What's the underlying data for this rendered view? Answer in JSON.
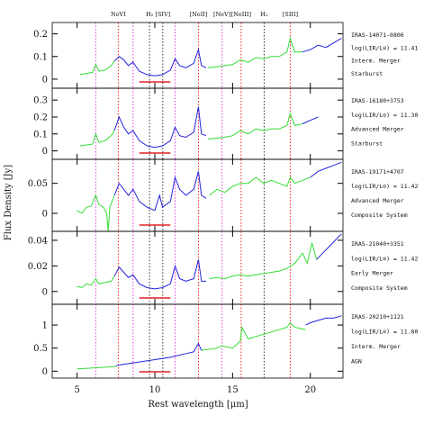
{
  "figure": {
    "xlabel": "Rest wavelength [μm]",
    "ylabel": "Flux Density [Jy]",
    "xlim": [
      3.4,
      22.1
    ],
    "xticks": [
      5,
      10,
      15,
      20
    ],
    "silicate_range": [
      9,
      11
    ],
    "lines": [
      {
        "x": 6.2,
        "color": "#e040e0"
      },
      {
        "x": 7.65,
        "color": "#ff2020",
        "label": "NeVI"
      },
      {
        "x": 8.6,
        "color": "#e040e0"
      },
      {
        "x": 9.66,
        "color": "#333333",
        "label": "H₂"
      },
      {
        "x": 10.51,
        "color": "#333333",
        "label": "[SIV]"
      },
      {
        "x": 11.3,
        "color": "#e040e0"
      },
      {
        "x": 12.81,
        "color": "#ff2020",
        "label": "[NeII]"
      },
      {
        "x": 14.32,
        "color": "#e040e0",
        "label": "[NeV]"
      },
      {
        "x": 15.55,
        "color": "#ff2020",
        "label": "[NeIII]"
      },
      {
        "x": 17.03,
        "color": "#333333",
        "label": "H₂"
      },
      {
        "x": 18.71,
        "color": "#ff2020",
        "label": "[SIII]"
      }
    ]
  },
  "chart_data": [
    {
      "type": "line",
      "ylim": [
        -0.04,
        0.25
      ],
      "yticks": [
        0,
        0.1,
        0.2
      ],
      "annotations": [
        "IRAS-14071-0806",
        "log(LIR/L⊙) = 11.41",
        "Interm. Merger",
        "Starburst"
      ],
      "series": [
        {
          "color": "#33dd33",
          "x": [
            5.2,
            5.6,
            6.0,
            6.2,
            6.4,
            6.8,
            7.2,
            7.4
          ],
          "values": [
            0.02,
            0.025,
            0.03,
            0.065,
            0.035,
            0.04,
            0.06,
            0.08
          ]
        },
        {
          "color": "#2222dd",
          "x": [
            7.4,
            7.7,
            8.0,
            8.3,
            8.6,
            9.0,
            9.5,
            10.0,
            10.5,
            11.0,
            11.3,
            11.6,
            12.0,
            12.5,
            12.8,
            13.0,
            13.3
          ],
          "values": [
            0.08,
            0.1,
            0.085,
            0.06,
            0.075,
            0.035,
            0.02,
            0.015,
            0.02,
            0.04,
            0.09,
            0.06,
            0.05,
            0.07,
            0.13,
            0.06,
            0.05
          ]
        },
        {
          "color": "#33dd33",
          "x": [
            13.4,
            14,
            14.5,
            15,
            15.5,
            16,
            16.5,
            17,
            17.5,
            18,
            18.5,
            18.7,
            19,
            19.5
          ],
          "values": [
            0.05,
            0.055,
            0.06,
            0.065,
            0.085,
            0.075,
            0.095,
            0.09,
            0.1,
            0.1,
            0.12,
            0.18,
            0.12,
            0.12
          ]
        },
        {
          "color": "#2222dd",
          "x": [
            19.5,
            20,
            20.5,
            21,
            21.5,
            22
          ],
          "values": [
            0.12,
            0.13,
            0.15,
            0.14,
            0.16,
            0.18
          ]
        }
      ]
    },
    {
      "type": "line",
      "ylim": [
        -0.05,
        0.37
      ],
      "yticks": [
        0,
        0.1,
        0.2,
        0.3
      ],
      "annotations": [
        "IRAS-16180+3753",
        "log(LIR/L⊙) = 11.30",
        "Advanced Merger",
        "Starburst"
      ],
      "series": [
        {
          "color": "#33dd33",
          "x": [
            5.2,
            5.6,
            6.0,
            6.2,
            6.4,
            6.8,
            7.2,
            7.4
          ],
          "values": [
            0.03,
            0.035,
            0.04,
            0.1,
            0.05,
            0.06,
            0.09,
            0.12
          ]
        },
        {
          "color": "#2222dd",
          "x": [
            7.4,
            7.7,
            8.0,
            8.3,
            8.6,
            9.0,
            9.5,
            10.0,
            10.5,
            11.0,
            11.3,
            11.6,
            12.0,
            12.5,
            12.8,
            13.0,
            13.3
          ],
          "values": [
            0.12,
            0.2,
            0.14,
            0.1,
            0.12,
            0.06,
            0.03,
            0.02,
            0.03,
            0.06,
            0.14,
            0.09,
            0.08,
            0.11,
            0.26,
            0.1,
            0.09
          ]
        },
        {
          "color": "#33dd33",
          "x": [
            13.4,
            14,
            14.5,
            15,
            15.5,
            16,
            16.5,
            17,
            17.5,
            18,
            18.5,
            18.7,
            19,
            19.5
          ],
          "values": [
            0.07,
            0.075,
            0.08,
            0.09,
            0.12,
            0.1,
            0.13,
            0.12,
            0.13,
            0.13,
            0.15,
            0.22,
            0.15,
            0.16
          ]
        },
        {
          "color": "#2222dd",
          "x": [
            19.5,
            20,
            20.5
          ],
          "values": [
            0.16,
            0.18,
            0.2
          ]
        }
      ]
    },
    {
      "type": "line",
      "ylim": [
        -0.03,
        0.09
      ],
      "yticks": [
        0,
        0.05
      ],
      "annotations": [
        "IRAS-19171+4707",
        "log(LIR/L⊙) = 11.42",
        "Advanced Merger",
        "Composite System"
      ],
      "series": [
        {
          "color": "#33dd33",
          "x": [
            5.0,
            5.3,
            5.6,
            5.9,
            6.2,
            6.4,
            6.7,
            6.9,
            7.0,
            7.1,
            7.4
          ],
          "values": [
            0.005,
            0.0,
            0.01,
            0.012,
            0.03,
            0.015,
            0.01,
            0.0,
            -0.03,
            0.01,
            0.03
          ]
        },
        {
          "color": "#2222dd",
          "x": [
            7.4,
            7.7,
            8.0,
            8.3,
            8.6,
            9.0,
            9.5,
            10.0,
            10.3,
            10.5,
            11.0,
            11.3,
            11.6,
            12.0,
            12.5,
            12.8,
            13.0,
            13.3
          ],
          "values": [
            0.03,
            0.05,
            0.04,
            0.03,
            0.04,
            0.02,
            0.01,
            0.005,
            0.03,
            0.01,
            0.02,
            0.06,
            0.04,
            0.03,
            0.04,
            0.07,
            0.03,
            0.025
          ]
        },
        {
          "color": "#33dd33",
          "x": [
            13.5,
            14,
            14.5,
            15,
            15.5,
            16,
            16.5,
            17,
            17.5,
            18,
            18.5,
            18.7,
            19,
            19.5,
            20
          ],
          "values": [
            0.03,
            0.04,
            0.035,
            0.045,
            0.05,
            0.05,
            0.06,
            0.05,
            0.055,
            0.05,
            0.045,
            0.06,
            0.05,
            0.055,
            0.06
          ]
        },
        {
          "color": "#2222dd",
          "x": [
            20,
            20.5,
            21,
            21.5,
            22
          ],
          "values": [
            0.06,
            0.07,
            0.075,
            0.08,
            0.085
          ]
        }
      ]
    },
    {
      "type": "line",
      "ylim": [
        -0.01,
        0.047
      ],
      "yticks": [
        0,
        0.02,
        0.04
      ],
      "annotations": [
        "IRAS-21040+3351",
        "log(LIR/L⊙) = 11.42",
        "Early Merger",
        "Composite System"
      ],
      "series": [
        {
          "color": "#33dd33",
          "x": [
            5,
            5.3,
            5.6,
            5.9,
            6.2,
            6.4,
            6.8,
            7.2,
            7.4
          ],
          "values": [
            0.004,
            0.003,
            0.006,
            0.005,
            0.01,
            0.006,
            0.007,
            0.008,
            0.012
          ]
        },
        {
          "color": "#2222dd",
          "x": [
            7.4,
            7.7,
            8.0,
            8.3,
            8.6,
            9.0,
            9.5,
            10.0,
            10.5,
            11.0,
            11.3,
            11.6,
            12.0,
            12.5,
            12.8,
            13.0,
            13.3
          ],
          "values": [
            0.012,
            0.019,
            0.015,
            0.011,
            0.013,
            0.006,
            0.003,
            0.002,
            0.003,
            0.006,
            0.02,
            0.01,
            0.008,
            0.01,
            0.025,
            0.008,
            0.008
          ]
        },
        {
          "color": "#33dd33",
          "x": [
            13.5,
            14,
            14.5,
            15,
            15.5,
            16,
            16.5,
            17,
            17.5,
            18,
            18.5,
            19,
            19.5,
            19.8,
            20.1,
            20.4
          ],
          "values": [
            0.01,
            0.011,
            0.01,
            0.012,
            0.013,
            0.012,
            0.013,
            0.014,
            0.015,
            0.016,
            0.018,
            0.022,
            0.03,
            0.022,
            0.038,
            0.025
          ]
        },
        {
          "color": "#2222dd",
          "x": [
            20.4,
            20.8,
            21.2,
            21.6,
            22
          ],
          "values": [
            0.025,
            0.03,
            0.035,
            0.04,
            0.045
          ]
        }
      ]
    },
    {
      "type": "line",
      "ylim": [
        -0.15,
        1.45
      ],
      "yticks": [
        0,
        0.5,
        1
      ],
      "annotations": [
        "IRAS-20210+1121",
        "log(LIR/L⊙) = 11.80",
        "Interm. Merger",
        "AGN"
      ],
      "series": [
        {
          "color": "#33dd33",
          "x": [
            5,
            5.5,
            6,
            6.5,
            7,
            7.5
          ],
          "values": [
            0.05,
            0.06,
            0.07,
            0.08,
            0.09,
            0.1
          ]
        },
        {
          "color": "#2222dd",
          "x": [
            7.5,
            8,
            9,
            10,
            11,
            12,
            12.5,
            12.8,
            13.0
          ],
          "values": [
            0.12,
            0.15,
            0.2,
            0.25,
            0.3,
            0.38,
            0.42,
            0.6,
            0.45
          ]
        },
        {
          "color": "#33dd33",
          "x": [
            13,
            14,
            14.3,
            15,
            15.5,
            15.6,
            16,
            17,
            18,
            18.5,
            18.7,
            19,
            19.7
          ],
          "values": [
            0.45,
            0.5,
            0.55,
            0.5,
            0.65,
            0.95,
            0.7,
            0.8,
            0.9,
            0.95,
            1.05,
            0.95,
            0.9
          ]
        },
        {
          "color": "#2222dd",
          "x": [
            19.7,
            20,
            20.5,
            21,
            21.5,
            22
          ],
          "values": [
            1.0,
            1.05,
            1.1,
            1.15,
            1.15,
            1.2
          ]
        }
      ]
    }
  ]
}
